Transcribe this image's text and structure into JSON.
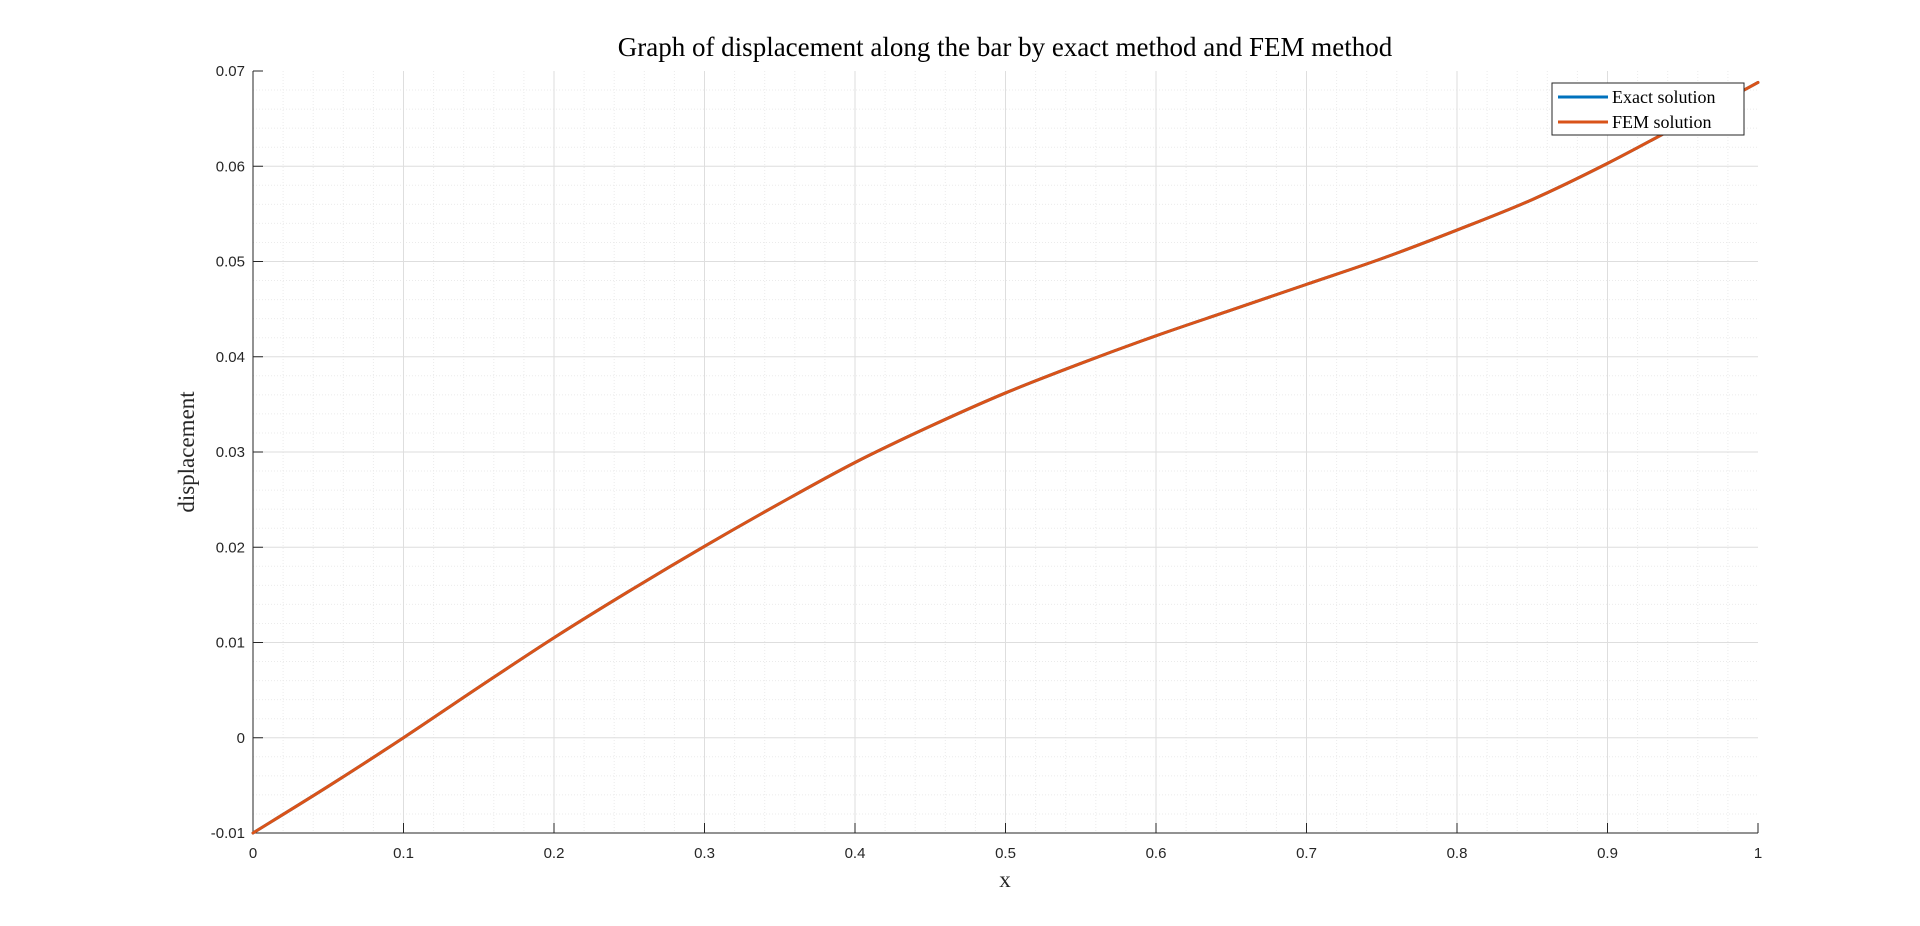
{
  "chart_data": {
    "type": "line",
    "title": "Graph of displacement along the bar by exact method and FEM method",
    "xlabel": "x",
    "ylabel": "displacement",
    "xlim": [
      0,
      1
    ],
    "ylim": [
      -0.01,
      0.07
    ],
    "xticks": [
      0,
      0.1,
      0.2,
      0.3,
      0.4,
      0.5,
      0.6,
      0.7,
      0.8,
      0.9,
      1
    ],
    "xtick_labels": [
      "0",
      "0.1",
      "0.2",
      "0.3",
      "0.4",
      "0.5",
      "0.6",
      "0.7",
      "0.8",
      "0.9",
      "1"
    ],
    "yticks": [
      -0.01,
      0,
      0.01,
      0.02,
      0.03,
      0.04,
      0.05,
      0.06,
      0.07
    ],
    "ytick_labels": [
      "-0.01",
      "0",
      "0.01",
      "0.02",
      "0.03",
      "0.04",
      "0.05",
      "0.06",
      "0.07"
    ],
    "grid": true,
    "minor_grid": true,
    "legend_position": "top-right",
    "x": [
      0,
      0.05,
      0.1,
      0.15,
      0.2,
      0.25,
      0.3,
      0.35,
      0.4,
      0.45,
      0.5,
      0.55,
      0.6,
      0.65,
      0.7,
      0.75,
      0.8,
      0.85,
      0.9,
      0.95,
      1.0
    ],
    "series": [
      {
        "name": "Exact solution",
        "color": "#0072BD",
        "values": [
          -0.01,
          -0.0051,
          0.0,
          0.0053,
          0.0105,
          0.0154,
          0.0201,
          0.0246,
          0.0289,
          0.0327,
          0.0362,
          0.0393,
          0.0422,
          0.0449,
          0.0476,
          0.0503,
          0.0533,
          0.0565,
          0.0603,
          0.0645,
          0.0688
        ]
      },
      {
        "name": "FEM solution",
        "color": "#D95319",
        "values": [
          -0.01,
          -0.0051,
          0.0,
          0.0053,
          0.0105,
          0.0154,
          0.0201,
          0.0246,
          0.0289,
          0.0327,
          0.0362,
          0.0393,
          0.0422,
          0.0449,
          0.0476,
          0.0503,
          0.0533,
          0.0565,
          0.0603,
          0.0645,
          0.0688
        ]
      }
    ]
  }
}
